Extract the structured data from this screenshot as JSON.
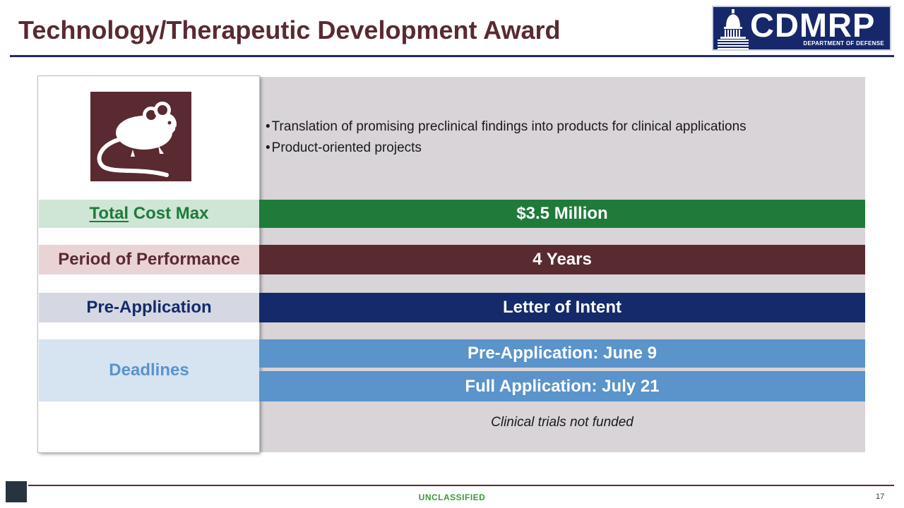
{
  "slide": {
    "title": "Technology/Therapeutic Development Award",
    "logo": {
      "text": "CDMRP",
      "subtitle": "DEPARTMENT OF DEFENSE",
      "icon": "capitol-dome-icon"
    },
    "image": {
      "icon": "mouse-icon"
    },
    "bullets": [
      "Translation of promising preclinical findings into products for clinical applications",
      "Product-oriented projects"
    ],
    "rows": {
      "cost": {
        "label_underlined": "Total",
        "label_rest": " Cost Max",
        "value": "$3.5 Million"
      },
      "period": {
        "label": "Period of Performance",
        "value": "4 Years"
      },
      "preapp": {
        "label": "Pre-Application",
        "value": "Letter of Intent"
      },
      "deadlines": {
        "label": "Deadlines",
        "values": [
          "Pre-Application: June 9",
          "Full Application: July 21"
        ]
      }
    },
    "note": "Clinical trials not funded",
    "footer": {
      "classification": "UNCLASSIFIED",
      "page": "17"
    },
    "colors": {
      "title": "#5a2a31",
      "green": "#1e7b3a",
      "maroon": "#5a2a31",
      "navy": "#142a6b",
      "light_blue": "#5b93cb",
      "panel": "#d8d4d7"
    }
  }
}
